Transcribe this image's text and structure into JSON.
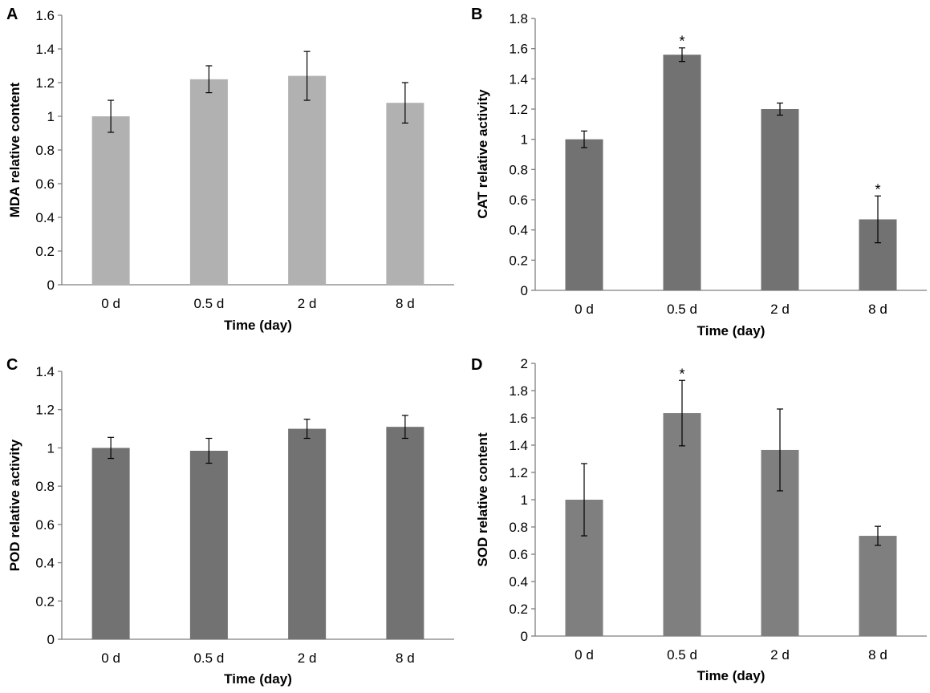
{
  "chart_data": [
    {
      "panel": "A",
      "type": "bar",
      "categories": [
        "0 d",
        "0.5 d",
        "2 d",
        "8 d"
      ],
      "values": [
        1.0,
        1.22,
        1.24,
        1.08
      ],
      "errors": [
        0.095,
        0.08,
        0.145,
        0.12
      ],
      "significance": [
        "",
        "",
        "",
        ""
      ],
      "ylim": [
        0,
        1.6
      ],
      "yticks": [
        "0",
        "0.2",
        "0.4",
        "0.6",
        "0.8",
        "1",
        "1.2",
        "1.4",
        "1.6"
      ],
      "xlabel": "Time (day)",
      "ylabel": "MDA relative content",
      "color": "#b1b1b1",
      "grid": false
    },
    {
      "panel": "B",
      "type": "bar",
      "categories": [
        "0 d",
        "0.5 d",
        "2 d",
        "8 d"
      ],
      "values": [
        1.0,
        1.56,
        1.2,
        0.47
      ],
      "errors": [
        0.055,
        0.045,
        0.04,
        0.155
      ],
      "significance": [
        "",
        "*",
        "",
        "*"
      ],
      "ylim": [
        0,
        1.8
      ],
      "yticks": [
        "0",
        "0.2",
        "0.4",
        "0.6",
        "0.8",
        "1",
        "1.2",
        "1.4",
        "1.6",
        "1.8"
      ],
      "xlabel": "Time (day)",
      "ylabel": "CAT relative activity",
      "color": "#727272",
      "grid": false
    },
    {
      "panel": "C",
      "type": "bar",
      "categories": [
        "0 d",
        "0.5 d",
        "2 d",
        "8 d"
      ],
      "values": [
        1.0,
        0.985,
        1.1,
        1.11
      ],
      "errors": [
        0.055,
        0.065,
        0.05,
        0.06
      ],
      "significance": [
        "",
        "",
        "",
        ""
      ],
      "ylim": [
        0,
        1.4
      ],
      "yticks": [
        "0",
        "0.2",
        "0.4",
        "0.6",
        "0.8",
        "1",
        "1.2",
        "1.4"
      ],
      "xlabel": "Time (day)",
      "ylabel": "POD relative activity",
      "color": "#727272",
      "grid": false
    },
    {
      "panel": "D",
      "type": "bar",
      "categories": [
        "0 d",
        "0.5 d",
        "2 d",
        "8 d"
      ],
      "values": [
        1.0,
        1.635,
        1.365,
        0.735
      ],
      "errors": [
        0.265,
        0.24,
        0.3,
        0.07
      ],
      "significance": [
        "",
        "*",
        "",
        ""
      ],
      "ylim": [
        0,
        2
      ],
      "yticks": [
        "0",
        "0.2",
        "0.4",
        "0.6",
        "0.8",
        "1",
        "1.2",
        "1.4",
        "1.6",
        "1.8",
        "2"
      ],
      "xlabel": "Time (day)",
      "ylabel": "SOD relative content",
      "color": "#7f7f7f",
      "grid": false
    }
  ]
}
